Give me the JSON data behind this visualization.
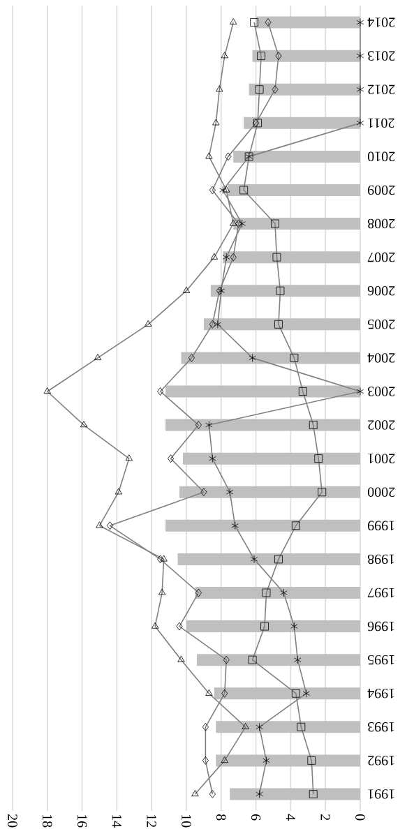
{
  "chart_data": {
    "type": "bar",
    "orientation": "horizontal",
    "categories": [
      "2014",
      "2013",
      "2012",
      "2011",
      "2010",
      "2009",
      "2008",
      "2007",
      "2006",
      "2005",
      "2004",
      "2003",
      "2002",
      "2001",
      "2000",
      "1999",
      "1998",
      "1997",
      "1996",
      "1995",
      "1994",
      "1993",
      "1992",
      "1991"
    ],
    "series": [
      {
        "type": "bar",
        "color": "#bfbfbf",
        "values": [
          6.0,
          6.2,
          6.4,
          6.7,
          7.3,
          7.6,
          7.3,
          7.9,
          8.6,
          9.0,
          10.3,
          11.2,
          11.2,
          10.2,
          10.4,
          11.2,
          10.5,
          9.5,
          10.0,
          9.4,
          8.4,
          8.3,
          8.3,
          7.5
        ]
      },
      {
        "type": "line",
        "color": "#808080",
        "marker": "square",
        "values": [
          6.1,
          5.7,
          5.8,
          5.9,
          6.4,
          6.7,
          4.9,
          4.8,
          4.6,
          4.7,
          3.8,
          3.3,
          2.7,
          2.4,
          2.2,
          3.7,
          4.7,
          5.4,
          5.5,
          6.2,
          3.7,
          3.4,
          2.8,
          2.7
        ]
      },
      {
        "type": "line",
        "color": "#808080",
        "marker": "diamond",
        "values": [
          5.3,
          4.7,
          4.9,
          6.0,
          7.6,
          8.5,
          7.0,
          7.3,
          8.1,
          8.5,
          9.7,
          11.5,
          9.3,
          10.9,
          9.0,
          14.4,
          11.5,
          9.3,
          10.4,
          7.7,
          7.8,
          8.9,
          8.9,
          8.5
        ]
      },
      {
        "type": "line",
        "color": "#808080",
        "marker": "cross",
        "values": [
          0,
          0,
          0,
          0,
          6.4,
          7.9,
          6.8,
          7.7,
          8.0,
          8.2,
          6.2,
          0,
          8.7,
          8.5,
          7.5,
          7.2,
          6.1,
          4.4,
          3.8,
          3.6,
          3.1,
          5.8,
          5.4,
          5.8
        ]
      },
      {
        "type": "line",
        "color": "#808080",
        "marker": "triangle",
        "values": [
          7.3,
          7.8,
          8.1,
          8.3,
          8.7,
          7.7,
          7.3,
          8.4,
          10.0,
          12.2,
          15.1,
          18.0,
          15.9,
          13.3,
          13.9,
          15.0,
          11.3,
          11.4,
          11.8,
          10.3,
          8.7,
          6.6,
          7.8,
          9.5
        ]
      }
    ],
    "xlim": [
      20,
      0
    ],
    "xticks": [
      0,
      2,
      4,
      6,
      8,
      10,
      12,
      14,
      16,
      18,
      20
    ],
    "grid": "x"
  }
}
